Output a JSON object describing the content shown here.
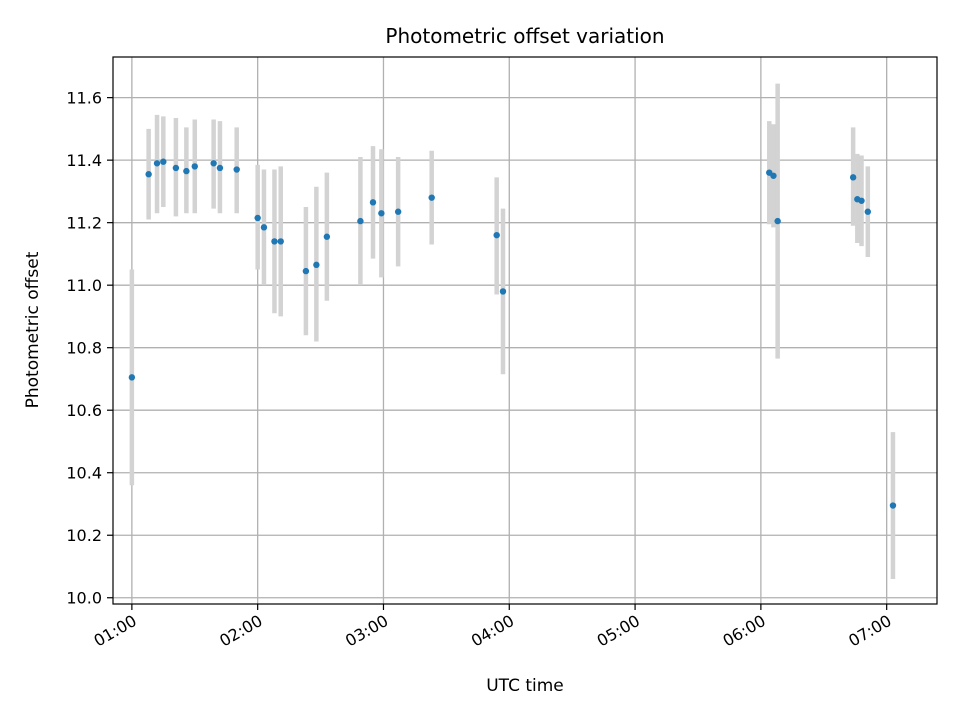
{
  "chart_data": {
    "type": "scatter",
    "title": "Photometric offset variation",
    "xlabel": "UTC time",
    "ylabel": "Photometric offset",
    "x_unit": "UTC HH:MM",
    "xlim": [
      "00:51",
      "07:24"
    ],
    "ylim": [
      9.98,
      11.73
    ],
    "x_ticks": [
      "01:00",
      "02:00",
      "03:00",
      "04:00",
      "05:00",
      "06:00",
      "07:00"
    ],
    "y_ticks": [
      10.0,
      10.2,
      10.4,
      10.6,
      10.8,
      11.0,
      11.2,
      11.4,
      11.6
    ],
    "y_tick_labels": [
      "10.0",
      "10.2",
      "10.4",
      "10.6",
      "10.8",
      "11.0",
      "11.2",
      "11.4",
      "11.6"
    ],
    "grid": true,
    "colors": {
      "point": "#1f77b4",
      "errorbar": "#d3d3d3",
      "grid": "#b0b0b0"
    },
    "points": [
      {
        "t": "01:00",
        "y": 10.705,
        "lo": 10.36,
        "hi": 11.05
      },
      {
        "t": "01:08",
        "y": 11.355,
        "lo": 11.21,
        "hi": 11.5
      },
      {
        "t": "01:12",
        "y": 11.39,
        "lo": 11.23,
        "hi": 11.545
      },
      {
        "t": "01:15",
        "y": 11.395,
        "lo": 11.25,
        "hi": 11.54
      },
      {
        "t": "01:21",
        "y": 11.375,
        "lo": 11.22,
        "hi": 11.535
      },
      {
        "t": "01:26",
        "y": 11.365,
        "lo": 11.23,
        "hi": 11.505
      },
      {
        "t": "01:30",
        "y": 11.38,
        "lo": 11.23,
        "hi": 11.53
      },
      {
        "t": "01:39",
        "y": 11.39,
        "lo": 11.245,
        "hi": 11.53
      },
      {
        "t": "01:42",
        "y": 11.375,
        "lo": 11.23,
        "hi": 11.525
      },
      {
        "t": "01:50",
        "y": 11.37,
        "lo": 11.23,
        "hi": 11.505
      },
      {
        "t": "02:00",
        "y": 11.215,
        "lo": 11.05,
        "hi": 11.385
      },
      {
        "t": "02:03",
        "y": 11.185,
        "lo": 11.0,
        "hi": 11.37
      },
      {
        "t": "02:08",
        "y": 11.14,
        "lo": 10.91,
        "hi": 11.37
      },
      {
        "t": "02:11",
        "y": 11.14,
        "lo": 10.9,
        "hi": 11.38
      },
      {
        "t": "02:23",
        "y": 11.045,
        "lo": 10.84,
        "hi": 11.25
      },
      {
        "t": "02:28",
        "y": 11.065,
        "lo": 10.82,
        "hi": 11.315
      },
      {
        "t": "02:33",
        "y": 11.155,
        "lo": 10.95,
        "hi": 11.36
      },
      {
        "t": "02:49",
        "y": 11.205,
        "lo": 11.0,
        "hi": 11.41
      },
      {
        "t": "02:55",
        "y": 11.265,
        "lo": 11.085,
        "hi": 11.445
      },
      {
        "t": "02:59",
        "y": 11.23,
        "lo": 11.025,
        "hi": 11.435
      },
      {
        "t": "03:07",
        "y": 11.235,
        "lo": 11.06,
        "hi": 11.41
      },
      {
        "t": "03:23",
        "y": 11.28,
        "lo": 11.13,
        "hi": 11.43
      },
      {
        "t": "03:54",
        "y": 11.16,
        "lo": 10.97,
        "hi": 11.345
      },
      {
        "t": "03:57",
        "y": 10.98,
        "lo": 10.715,
        "hi": 11.245
      },
      {
        "t": "06:04",
        "y": 11.36,
        "lo": 11.195,
        "hi": 11.525
      },
      {
        "t": "06:06",
        "y": 11.35,
        "lo": 11.185,
        "hi": 11.515
      },
      {
        "t": "06:08",
        "y": 11.205,
        "lo": 10.765,
        "hi": 11.645
      },
      {
        "t": "06:44",
        "y": 11.345,
        "lo": 11.19,
        "hi": 11.505
      },
      {
        "t": "06:46",
        "y": 11.275,
        "lo": 11.135,
        "hi": 11.42
      },
      {
        "t": "06:48",
        "y": 11.27,
        "lo": 11.125,
        "hi": 11.415
      },
      {
        "t": "06:51",
        "y": 11.235,
        "lo": 11.09,
        "hi": 11.38
      },
      {
        "t": "07:03",
        "y": 10.295,
        "lo": 10.06,
        "hi": 10.53
      }
    ]
  }
}
